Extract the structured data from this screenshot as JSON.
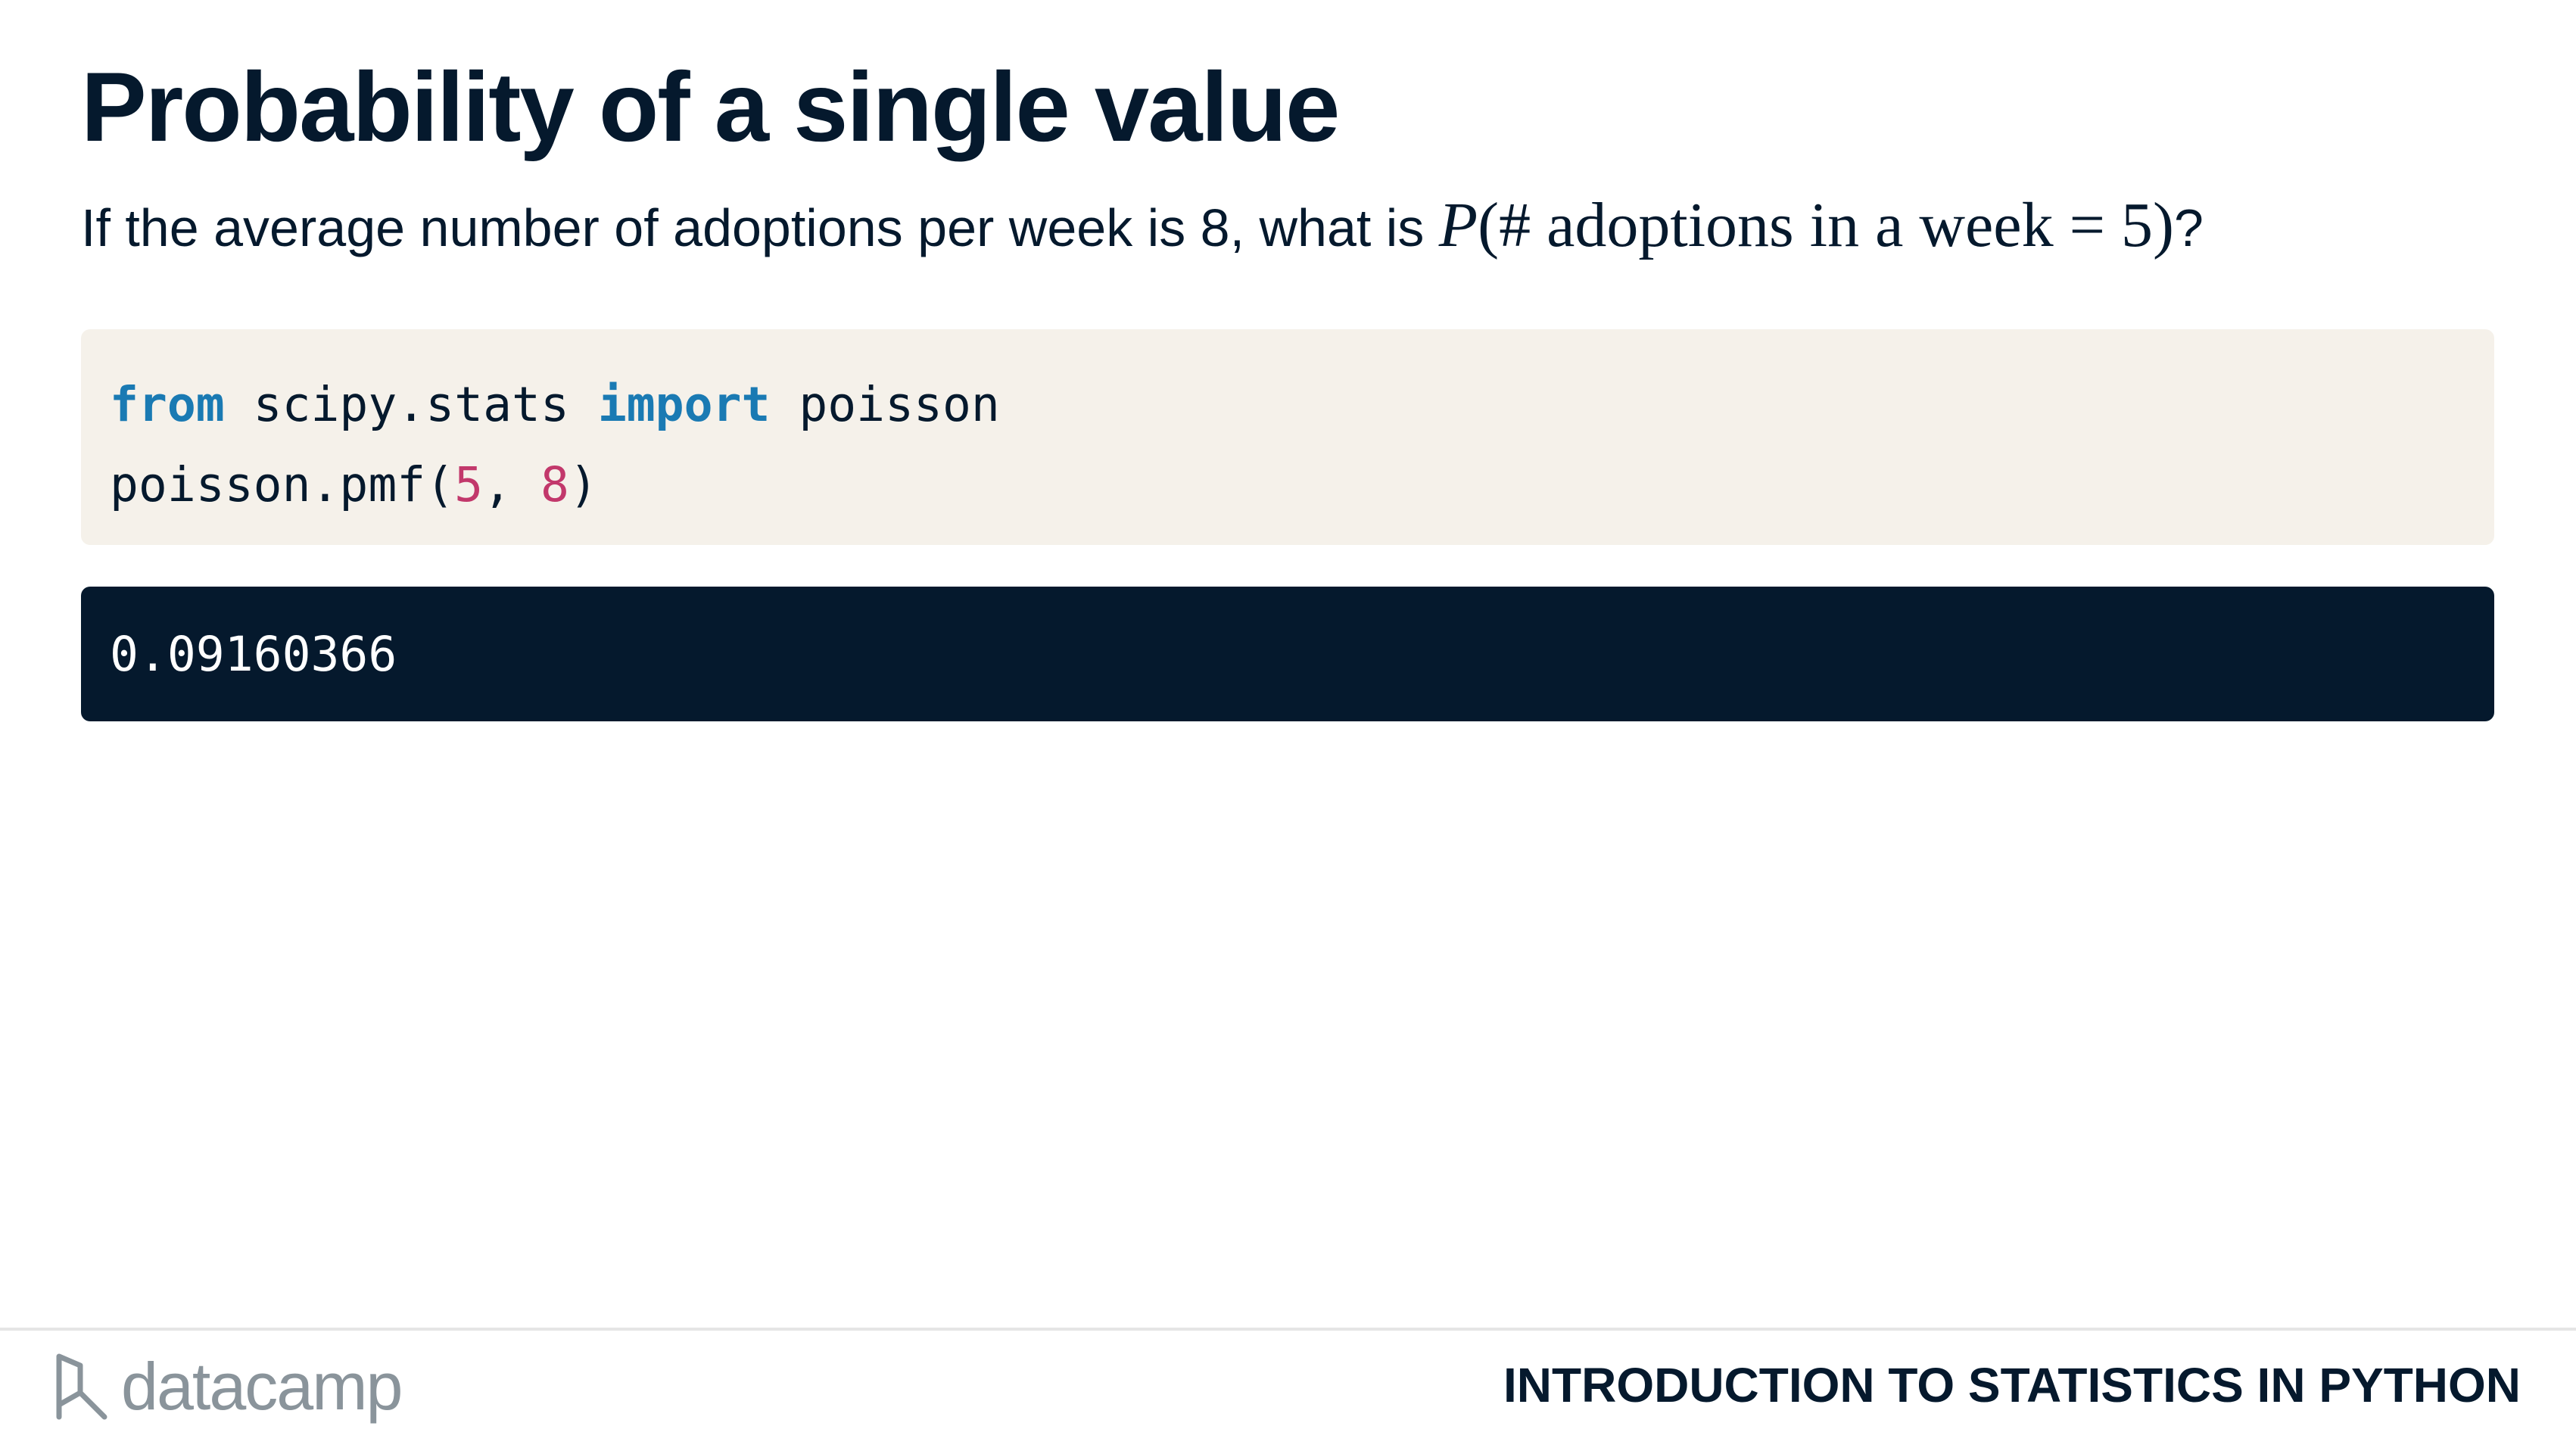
{
  "slide": {
    "title": "Probability of a single value",
    "question": {
      "prefix": "If the average number of adoptions per week is 8, what is ",
      "math_P": "P",
      "math_open": "(",
      "math_body": "# adoptions in a week = 5",
      "math_close": ")",
      "suffix": "?"
    }
  },
  "code": {
    "line1": {
      "kw_from": "from",
      "module": " scipy.stats ",
      "kw_import": "import",
      "name": " poisson"
    },
    "line2": {
      "call": "poisson.pmf(",
      "arg1": "5",
      "sep": ", ",
      "arg2": "8",
      "close": ")"
    }
  },
  "output": {
    "value": "0.09160366"
  },
  "footer": {
    "logo_text": "datacamp",
    "course_title": "INTRODUCTION TO STATISTICS IN PYTHON"
  },
  "colors": {
    "navy": "#05192d",
    "code_bg": "#f5f1ea",
    "keyword": "#1a7ab3",
    "number": "#c2386b",
    "logo_gray": "#8a949b"
  }
}
